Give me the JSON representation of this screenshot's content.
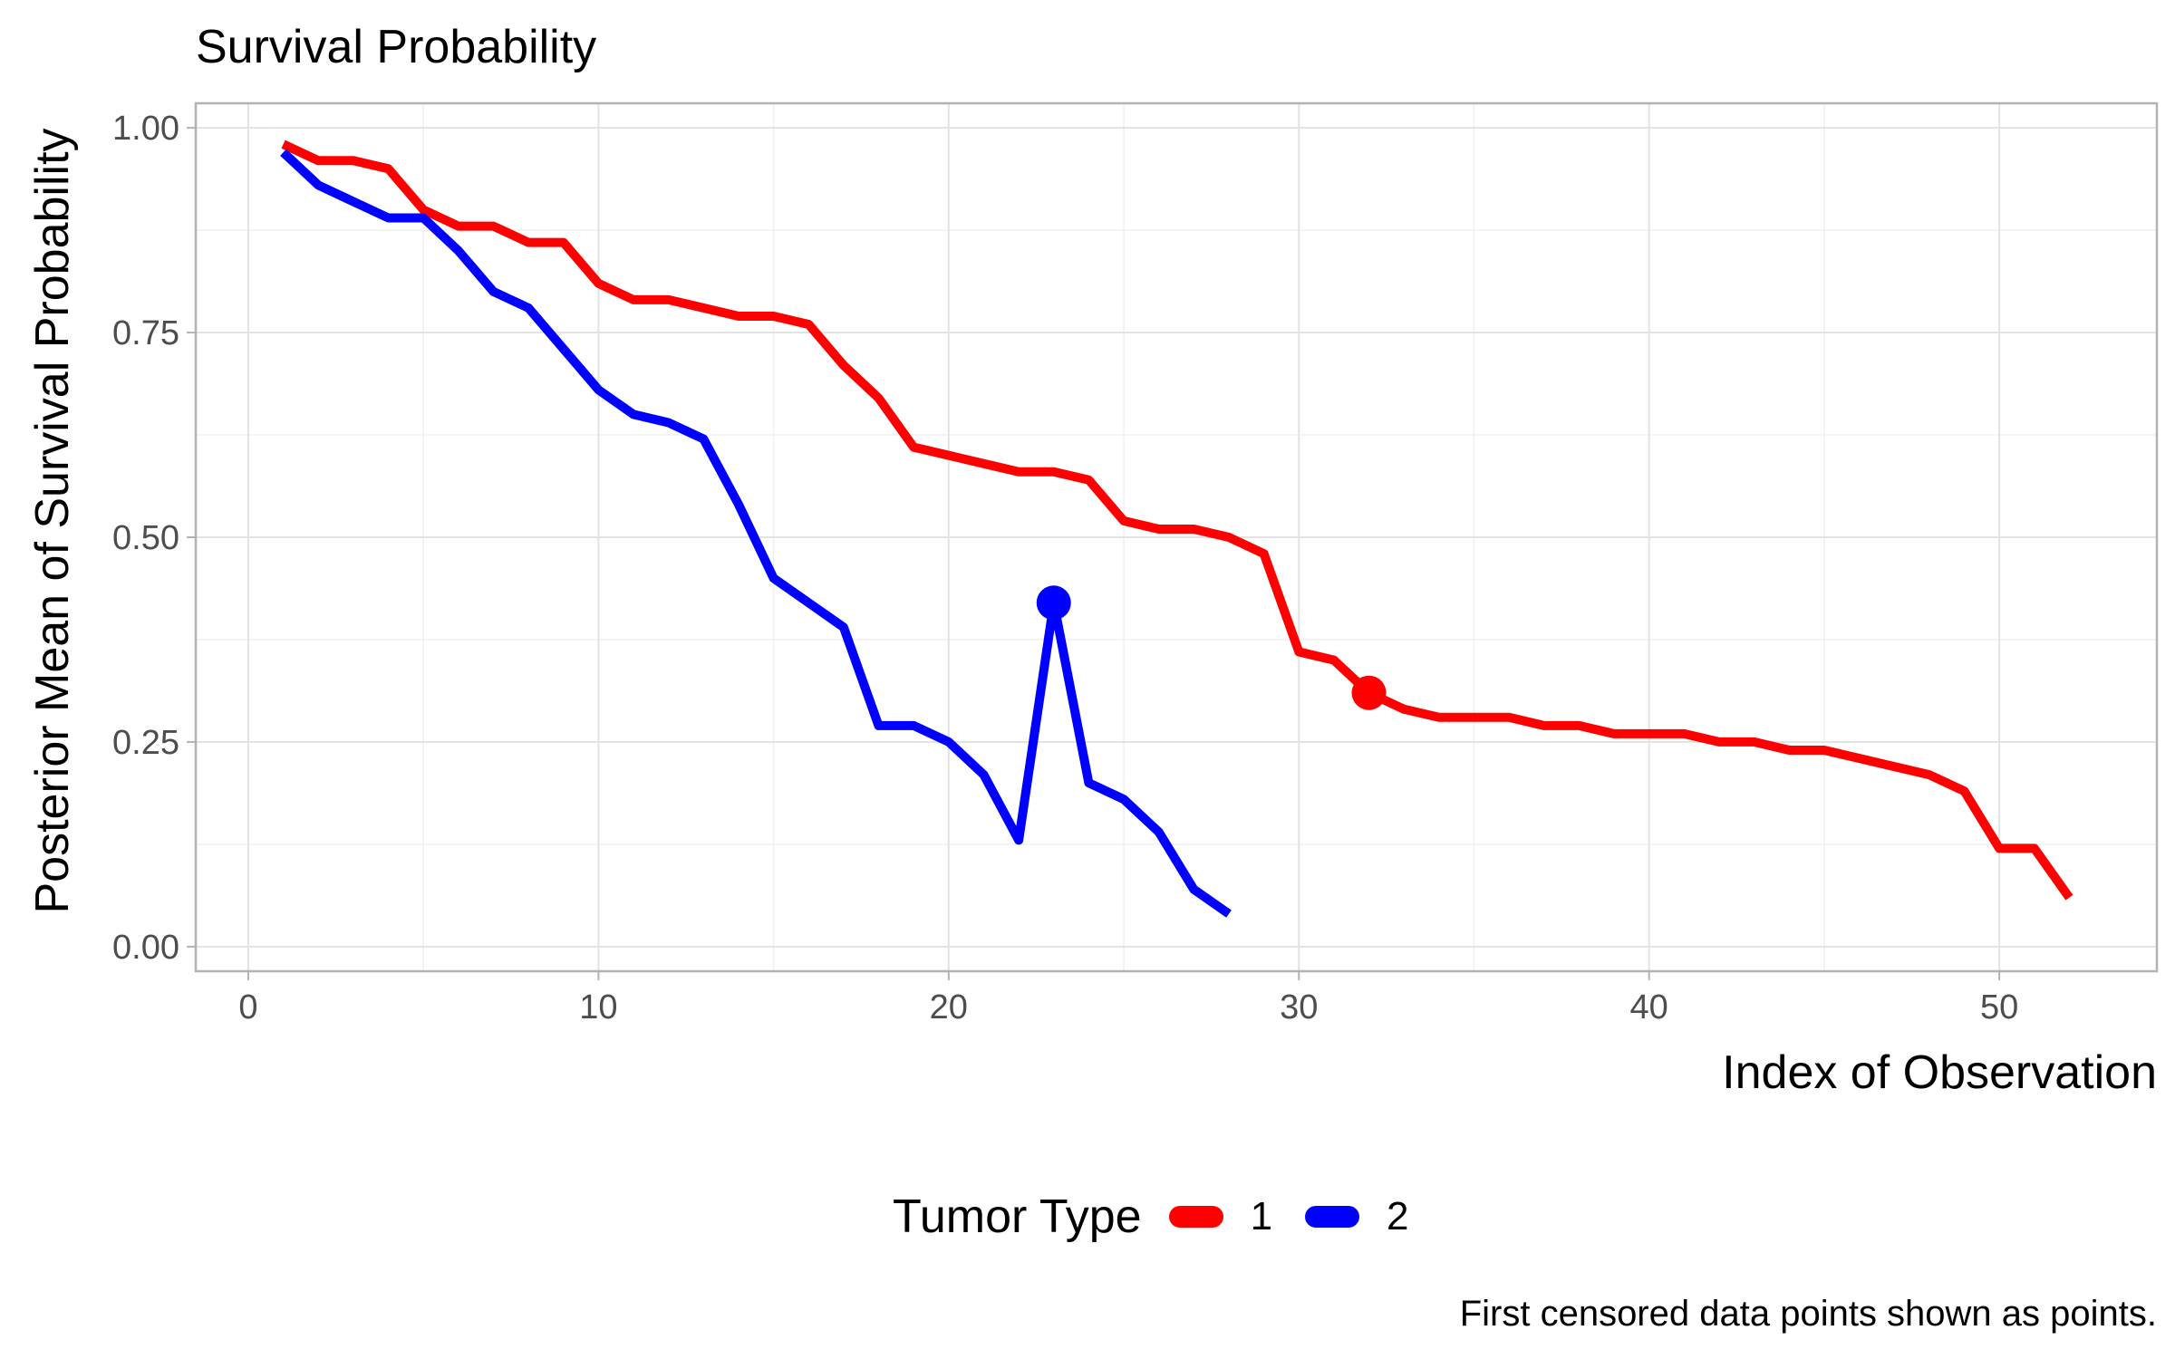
{
  "chart_data": {
    "type": "line",
    "title": "Survival Probability",
    "xlabel": "Index of Observation",
    "ylabel": "Posterior Mean of Survival Probability",
    "caption": "First censored data points shown as points.",
    "xlim": [
      -1.5,
      54.5
    ],
    "ylim": [
      -0.03,
      1.03
    ],
    "x_ticks": [
      0,
      10,
      20,
      30,
      40,
      50
    ],
    "y_ticks": [
      0.0,
      0.25,
      0.5,
      0.75,
      1.0
    ],
    "y_tick_labels": [
      "0.00",
      "0.25",
      "0.50",
      "0.75",
      "1.00"
    ],
    "grid": true,
    "legend_position": "bottom",
    "legend_title": "Tumor Type",
    "series": [
      {
        "name": "1",
        "color": "#FF0000",
        "x": [
          1,
          2,
          3,
          4,
          5,
          6,
          7,
          8,
          9,
          10,
          11,
          12,
          13,
          14,
          15,
          16,
          17,
          18,
          19,
          20,
          21,
          22,
          23,
          24,
          25,
          26,
          27,
          28,
          29,
          30,
          31,
          32,
          33,
          34,
          35,
          36,
          37,
          38,
          39,
          40,
          41,
          42,
          43,
          44,
          45,
          46,
          47,
          48,
          49,
          50,
          51,
          52
        ],
        "y": [
          0.98,
          0.96,
          0.96,
          0.95,
          0.9,
          0.88,
          0.88,
          0.86,
          0.86,
          0.81,
          0.79,
          0.79,
          0.78,
          0.77,
          0.77,
          0.76,
          0.71,
          0.67,
          0.61,
          0.6,
          0.59,
          0.58,
          0.58,
          0.57,
          0.52,
          0.51,
          0.51,
          0.5,
          0.48,
          0.36,
          0.35,
          0.31,
          0.29,
          0.28,
          0.28,
          0.28,
          0.27,
          0.27,
          0.26,
          0.26,
          0.26,
          0.25,
          0.25,
          0.24,
          0.24,
          0.23,
          0.22,
          0.21,
          0.19,
          0.12,
          0.12,
          0.06
        ],
        "censored_point": {
          "x": 32,
          "y": 0.31
        }
      },
      {
        "name": "2",
        "color": "#0000FF",
        "x": [
          1,
          2,
          3,
          4,
          5,
          6,
          7,
          8,
          9,
          10,
          11,
          12,
          13,
          14,
          15,
          16,
          17,
          18,
          19,
          20,
          21,
          22,
          23,
          24,
          25,
          26,
          27,
          28
        ],
        "y": [
          0.97,
          0.93,
          0.91,
          0.89,
          0.89,
          0.85,
          0.8,
          0.78,
          0.73,
          0.68,
          0.65,
          0.64,
          0.62,
          0.54,
          0.45,
          0.42,
          0.39,
          0.27,
          0.27,
          0.25,
          0.21,
          0.13,
          0.42,
          0.2,
          0.18,
          0.14,
          0.07,
          0.04
        ],
        "censored_point": {
          "x": 23,
          "y": 0.42
        }
      }
    ]
  }
}
